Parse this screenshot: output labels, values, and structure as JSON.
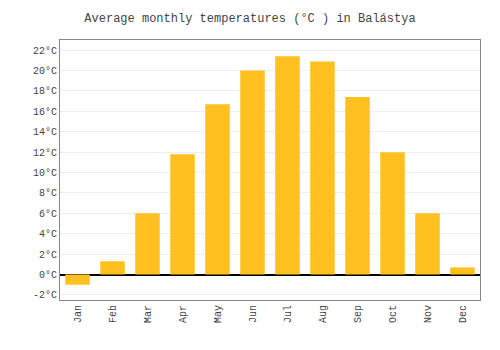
{
  "chart_data": {
    "type": "bar",
    "title": "Average monthly temperatures (°C ) in Balástya",
    "categories": [
      "Jan",
      "Feb",
      "Mar",
      "Apr",
      "May",
      "Jun",
      "Jul",
      "Aug",
      "Sep",
      "Oct",
      "Nov",
      "Dec"
    ],
    "values": [
      -1.0,
      1.3,
      6.0,
      11.8,
      16.7,
      20.0,
      21.4,
      20.9,
      17.4,
      12.0,
      6.0,
      0.7
    ],
    "color": "#FFC020",
    "ylim": [
      -2.5,
      23
    ],
    "yticks": [
      {
        "value": -2,
        "label": "-2°C"
      },
      {
        "value": 0,
        "label": "0°C"
      },
      {
        "value": 2,
        "label": "2°C"
      },
      {
        "value": 4,
        "label": "4°C"
      },
      {
        "value": 6,
        "label": "6°C"
      },
      {
        "value": 8,
        "label": "8°C"
      },
      {
        "value": 10,
        "label": "10°C"
      },
      {
        "value": 12,
        "label": "12°C"
      },
      {
        "value": 14,
        "label": "14°C"
      },
      {
        "value": 16,
        "label": "16°C"
      },
      {
        "value": 18,
        "label": "18°C"
      },
      {
        "value": 20,
        "label": "20°C"
      },
      {
        "value": 22,
        "label": "22°C"
      }
    ],
    "grid": true
  }
}
